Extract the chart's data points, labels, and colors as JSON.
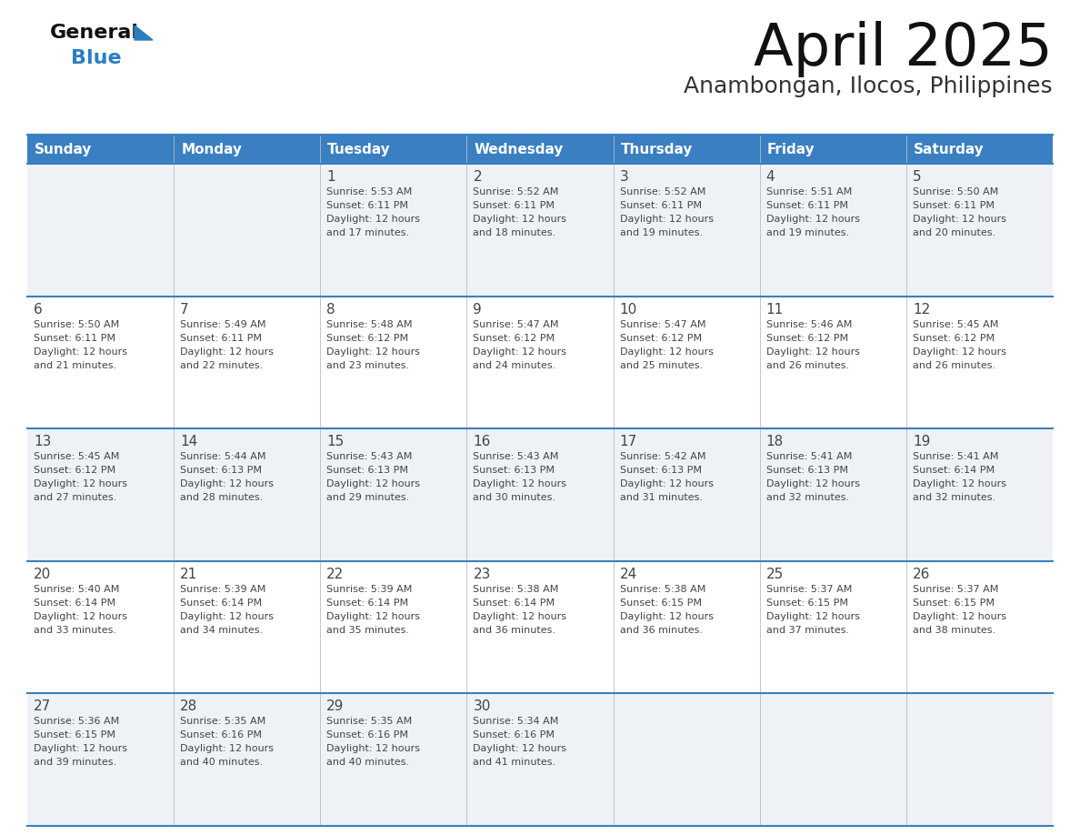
{
  "title": "April 2025",
  "subtitle": "Anambongan, Ilocos, Philippines",
  "days_of_week": [
    "Sunday",
    "Monday",
    "Tuesday",
    "Wednesday",
    "Thursday",
    "Friday",
    "Saturday"
  ],
  "header_bg_color": "#3a7fc1",
  "header_text_color": "#ffffff",
  "row_bg_even": "#eef2f7",
  "row_bg_odd": "#ffffff",
  "cell_text_color": "#444444",
  "grid_line_color": "#3a7fc1",
  "title_color": "#111111",
  "subtitle_color": "#333333",
  "logo_general_color": "#111111",
  "logo_blue_color": "#2b7ec1",
  "calendar_data": [
    {
      "day": 1,
      "col": 2,
      "row": 0,
      "sunrise": "5:53 AM",
      "sunset": "6:11 PM",
      "daylight_hours": 12,
      "daylight_minutes": 17
    },
    {
      "day": 2,
      "col": 3,
      "row": 0,
      "sunrise": "5:52 AM",
      "sunset": "6:11 PM",
      "daylight_hours": 12,
      "daylight_minutes": 18
    },
    {
      "day": 3,
      "col": 4,
      "row": 0,
      "sunrise": "5:52 AM",
      "sunset": "6:11 PM",
      "daylight_hours": 12,
      "daylight_minutes": 19
    },
    {
      "day": 4,
      "col": 5,
      "row": 0,
      "sunrise": "5:51 AM",
      "sunset": "6:11 PM",
      "daylight_hours": 12,
      "daylight_minutes": 19
    },
    {
      "day": 5,
      "col": 6,
      "row": 0,
      "sunrise": "5:50 AM",
      "sunset": "6:11 PM",
      "daylight_hours": 12,
      "daylight_minutes": 20
    },
    {
      "day": 6,
      "col": 0,
      "row": 1,
      "sunrise": "5:50 AM",
      "sunset": "6:11 PM",
      "daylight_hours": 12,
      "daylight_minutes": 21
    },
    {
      "day": 7,
      "col": 1,
      "row": 1,
      "sunrise": "5:49 AM",
      "sunset": "6:11 PM",
      "daylight_hours": 12,
      "daylight_minutes": 22
    },
    {
      "day": 8,
      "col": 2,
      "row": 1,
      "sunrise": "5:48 AM",
      "sunset": "6:12 PM",
      "daylight_hours": 12,
      "daylight_minutes": 23
    },
    {
      "day": 9,
      "col": 3,
      "row": 1,
      "sunrise": "5:47 AM",
      "sunset": "6:12 PM",
      "daylight_hours": 12,
      "daylight_minutes": 24
    },
    {
      "day": 10,
      "col": 4,
      "row": 1,
      "sunrise": "5:47 AM",
      "sunset": "6:12 PM",
      "daylight_hours": 12,
      "daylight_minutes": 25
    },
    {
      "day": 11,
      "col": 5,
      "row": 1,
      "sunrise": "5:46 AM",
      "sunset": "6:12 PM",
      "daylight_hours": 12,
      "daylight_minutes": 26
    },
    {
      "day": 12,
      "col": 6,
      "row": 1,
      "sunrise": "5:45 AM",
      "sunset": "6:12 PM",
      "daylight_hours": 12,
      "daylight_minutes": 26
    },
    {
      "day": 13,
      "col": 0,
      "row": 2,
      "sunrise": "5:45 AM",
      "sunset": "6:12 PM",
      "daylight_hours": 12,
      "daylight_minutes": 27
    },
    {
      "day": 14,
      "col": 1,
      "row": 2,
      "sunrise": "5:44 AM",
      "sunset": "6:13 PM",
      "daylight_hours": 12,
      "daylight_minutes": 28
    },
    {
      "day": 15,
      "col": 2,
      "row": 2,
      "sunrise": "5:43 AM",
      "sunset": "6:13 PM",
      "daylight_hours": 12,
      "daylight_minutes": 29
    },
    {
      "day": 16,
      "col": 3,
      "row": 2,
      "sunrise": "5:43 AM",
      "sunset": "6:13 PM",
      "daylight_hours": 12,
      "daylight_minutes": 30
    },
    {
      "day": 17,
      "col": 4,
      "row": 2,
      "sunrise": "5:42 AM",
      "sunset": "6:13 PM",
      "daylight_hours": 12,
      "daylight_minutes": 31
    },
    {
      "day": 18,
      "col": 5,
      "row": 2,
      "sunrise": "5:41 AM",
      "sunset": "6:13 PM",
      "daylight_hours": 12,
      "daylight_minutes": 32
    },
    {
      "day": 19,
      "col": 6,
      "row": 2,
      "sunrise": "5:41 AM",
      "sunset": "6:14 PM",
      "daylight_hours": 12,
      "daylight_minutes": 32
    },
    {
      "day": 20,
      "col": 0,
      "row": 3,
      "sunrise": "5:40 AM",
      "sunset": "6:14 PM",
      "daylight_hours": 12,
      "daylight_minutes": 33
    },
    {
      "day": 21,
      "col": 1,
      "row": 3,
      "sunrise": "5:39 AM",
      "sunset": "6:14 PM",
      "daylight_hours": 12,
      "daylight_minutes": 34
    },
    {
      "day": 22,
      "col": 2,
      "row": 3,
      "sunrise": "5:39 AM",
      "sunset": "6:14 PM",
      "daylight_hours": 12,
      "daylight_minutes": 35
    },
    {
      "day": 23,
      "col": 3,
      "row": 3,
      "sunrise": "5:38 AM",
      "sunset": "6:14 PM",
      "daylight_hours": 12,
      "daylight_minutes": 36
    },
    {
      "day": 24,
      "col": 4,
      "row": 3,
      "sunrise": "5:38 AM",
      "sunset": "6:15 PM",
      "daylight_hours": 12,
      "daylight_minutes": 36
    },
    {
      "day": 25,
      "col": 5,
      "row": 3,
      "sunrise": "5:37 AM",
      "sunset": "6:15 PM",
      "daylight_hours": 12,
      "daylight_minutes": 37
    },
    {
      "day": 26,
      "col": 6,
      "row": 3,
      "sunrise": "5:37 AM",
      "sunset": "6:15 PM",
      "daylight_hours": 12,
      "daylight_minutes": 38
    },
    {
      "day": 27,
      "col": 0,
      "row": 4,
      "sunrise": "5:36 AM",
      "sunset": "6:15 PM",
      "daylight_hours": 12,
      "daylight_minutes": 39
    },
    {
      "day": 28,
      "col": 1,
      "row": 4,
      "sunrise": "5:35 AM",
      "sunset": "6:16 PM",
      "daylight_hours": 12,
      "daylight_minutes": 40
    },
    {
      "day": 29,
      "col": 2,
      "row": 4,
      "sunrise": "5:35 AM",
      "sunset": "6:16 PM",
      "daylight_hours": 12,
      "daylight_minutes": 40
    },
    {
      "day": 30,
      "col": 3,
      "row": 4,
      "sunrise": "5:34 AM",
      "sunset": "6:16 PM",
      "daylight_hours": 12,
      "daylight_minutes": 41
    }
  ]
}
